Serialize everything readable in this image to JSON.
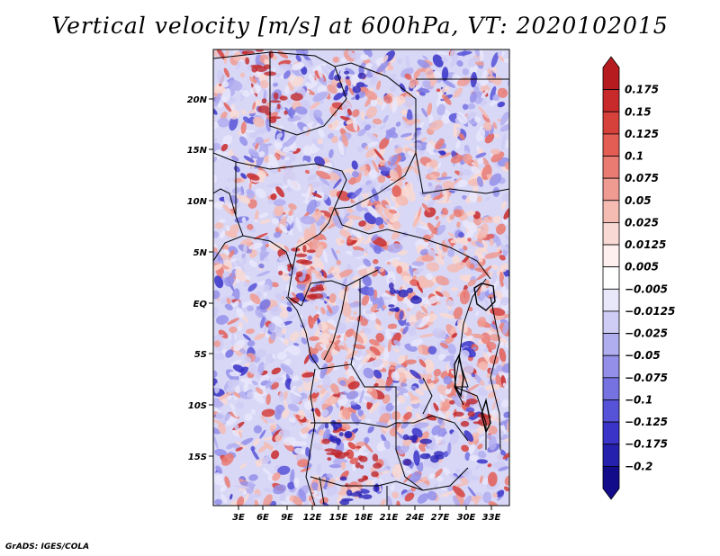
{
  "title": "Vertical velocity [m/s] at 600hPa, VT: 2020102015",
  "footer": "GrADS: IGES/COLA",
  "map": {
    "lat_labels": [
      "20N",
      "15N",
      "10N",
      "5N",
      "EQ",
      "5S",
      "10S",
      "15S"
    ],
    "lon_labels": [
      "3E",
      "6E",
      "9E",
      "12E",
      "15E",
      "18E",
      "21E",
      "24E",
      "27E",
      "30E",
      "33E"
    ]
  },
  "colorbar": {
    "labels": [
      "0.175",
      "0.15",
      "0.125",
      "0.1",
      "0.075",
      "0.05",
      "0.025",
      "0.0125",
      "0.005",
      "−0.005",
      "−0.0125",
      "−0.025",
      "−0.05",
      "−0.075",
      "−0.1",
      "−0.125",
      "−0.175",
      "−0.2"
    ],
    "colors": [
      "#b51b1f",
      "#c82a2c",
      "#d7413c",
      "#e35d55",
      "#ea7b72",
      "#f09b92",
      "#f5bcb4",
      "#f9d9d4",
      "#fdf0ee",
      "#ffffff",
      "#e9e8fb",
      "#cfcdf5",
      "#b1aef0",
      "#9490ea",
      "#7672e2",
      "#5753d8",
      "#3a34c8",
      "#2520ad",
      "#130c8a"
    ]
  },
  "colors": {
    "rising_core": "#c0282c",
    "sinking_core": "#2b24b8",
    "land_mid_blue": "#b8b6ef",
    "land_mid_red": "#f2b0a8"
  }
}
